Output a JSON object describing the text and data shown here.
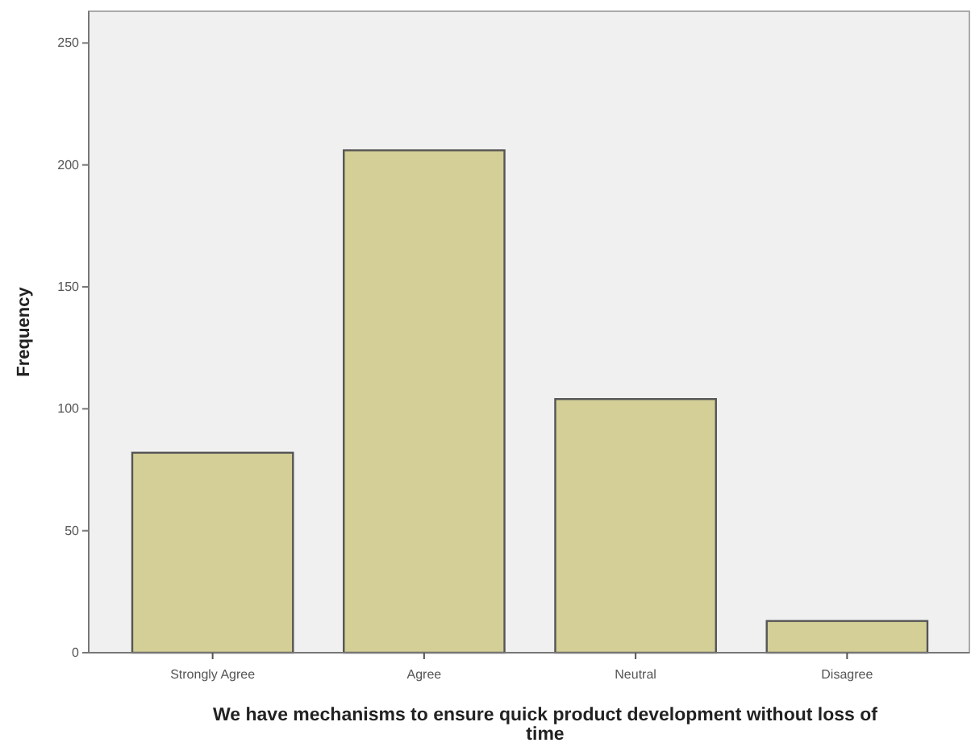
{
  "chart_data": {
    "type": "bar",
    "xlabel": "We have mechanisms to ensure quick product development without loss of time",
    "ylabel": "Frequency",
    "categories": [
      "Strongly Agree",
      "Agree",
      "Neutral",
      "Disagree"
    ],
    "values": [
      82,
      206,
      104,
      13
    ],
    "color": "#d3cf96",
    "ylim": [
      0,
      263
    ],
    "yticks": [
      0,
      50,
      100,
      150,
      200,
      250
    ],
    "grid": false
  }
}
